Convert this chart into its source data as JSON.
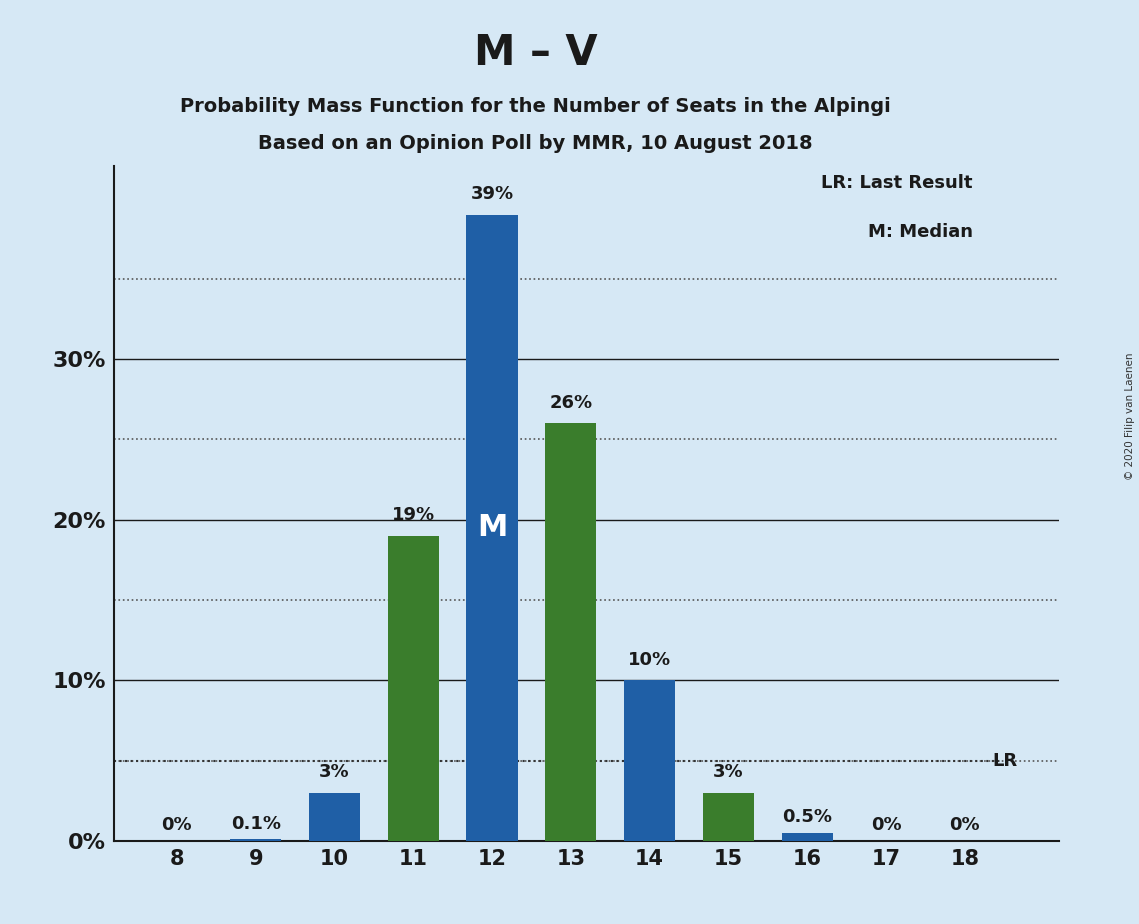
{
  "title": "M – V",
  "subtitle1": "Probability Mass Function for the Number of Seats in the Alpingi",
  "subtitle2": "Based on an Opinion Poll by MMR, 10 August 2018",
  "copyright": "© 2020 Filip van Laenen",
  "seats": [
    8,
    9,
    10,
    11,
    12,
    13,
    14,
    15,
    16,
    17,
    18
  ],
  "blue_values": [
    0.0,
    0.1,
    3.0,
    0.0,
    39.0,
    0.0,
    10.0,
    0.0,
    0.5,
    0.0,
    0.0
  ],
  "green_values": [
    0.0,
    0.0,
    0.0,
    19.0,
    0.0,
    26.0,
    0.0,
    3.0,
    0.0,
    0.0,
    0.0
  ],
  "blue_labels": [
    "0%",
    "0.1%",
    "3%",
    "",
    "39%",
    "",
    "10%",
    "",
    "0.5%",
    "0%",
    "0%"
  ],
  "green_labels": [
    "",
    "",
    "",
    "19%",
    "",
    "26%",
    "",
    "3%",
    "",
    "",
    ""
  ],
  "blue_color": "#1F5FA6",
  "green_color": "#3A7D2C",
  "background_color": "#D6E8F5",
  "lr_value": 5.0,
  "median_seat": 12,
  "ylim": [
    0,
    42
  ],
  "solid_gridlines": [
    10,
    20,
    30
  ],
  "dotted_gridlines": [
    5,
    15,
    25,
    35
  ],
  "ytick_positions": [
    0,
    10,
    20,
    30
  ],
  "ytick_labels": [
    "0%",
    "10%",
    "20%",
    "30%"
  ],
  "legend_lr": "LR: Last Result",
  "legend_m": "M: Median",
  "bar_width": 0.65
}
